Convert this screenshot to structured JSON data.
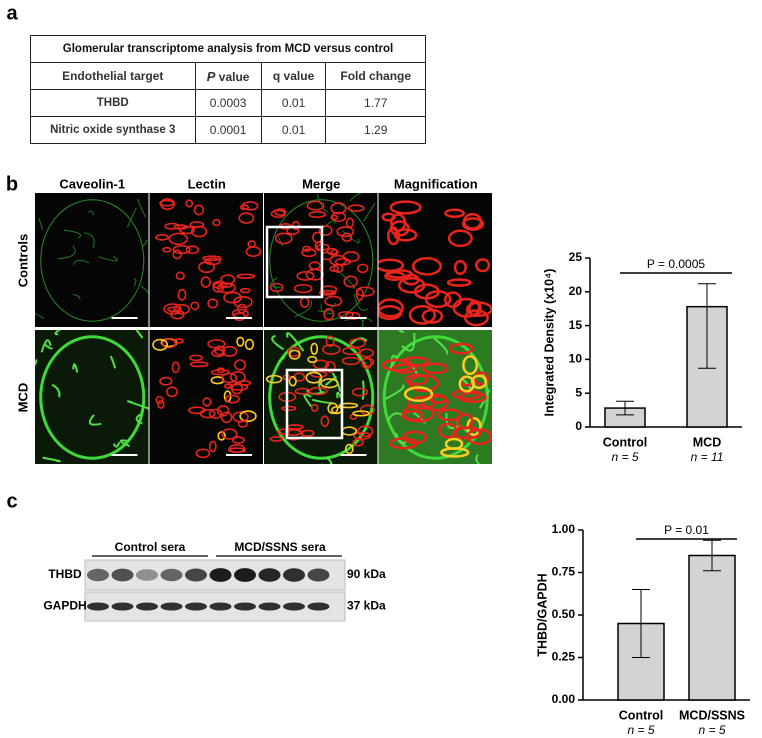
{
  "panel_labels": [
    "a",
    "b",
    "c"
  ],
  "table": {
    "caption": "Glomerular transcriptome analysis from MCD versus control",
    "headers": [
      "Endothelial target",
      "P",
      "value",
      "q value",
      "Fold change"
    ],
    "rows": [
      [
        "THBD",
        "0.0003",
        "0.01",
        "1.77"
      ],
      [
        "Nitric oxide synthase 3",
        "0.0001",
        "0.01",
        "1.29"
      ]
    ]
  },
  "images": {
    "columns": [
      "Caveolin-1",
      "Lectin",
      "Merge",
      "Magnification"
    ],
    "rows": [
      "Controls",
      "MCD"
    ]
  },
  "blot": {
    "groups": [
      "Control sera",
      "MCD/SSNS sera"
    ],
    "bands": [
      "THBD",
      "GAPDH"
    ],
    "sizes": [
      "90 kDa",
      "37 kDa"
    ]
  },
  "chart_data": [
    {
      "type": "bar",
      "y_label": "Integrated Density (x10⁴)",
      "annotation": "P = 0.0005",
      "categories": [
        "Control",
        "MCD"
      ],
      "n_labels": [
        "n = 5",
        "n = 11"
      ],
      "values": [
        2.8,
        17.8
      ],
      "errors_minus": [
        1.0,
        9.1
      ],
      "errors_plus": [
        1.0,
        3.4
      ],
      "color": "#d3d3d3",
      "ylim": [
        0,
        25
      ],
      "yticks": [
        0,
        5,
        10,
        15,
        20,
        25
      ]
    },
    {
      "type": "bar",
      "y_label": "THBD/GAPDH",
      "annotation": "P = 0.01",
      "categories": [
        "Control",
        "MCD/SSNS"
      ],
      "n_labels": [
        "n = 5",
        "n = 5"
      ],
      "values": [
        0.45,
        0.85
      ],
      "errors_minus": [
        0.2,
        0.09
      ],
      "errors_plus": [
        0.2,
        0.09
      ],
      "color": "#d3d3d3",
      "ylim": [
        0,
        1
      ],
      "yticks": [
        {
          "value": 0,
          "label": "0.00"
        },
        {
          "value": 0.25,
          "label": "0.25"
        },
        {
          "value": 0.5,
          "label": "0.50"
        },
        {
          "value": 0.75,
          "label": "0.75"
        },
        {
          "value": 1,
          "label": "1.00"
        }
      ]
    }
  ]
}
